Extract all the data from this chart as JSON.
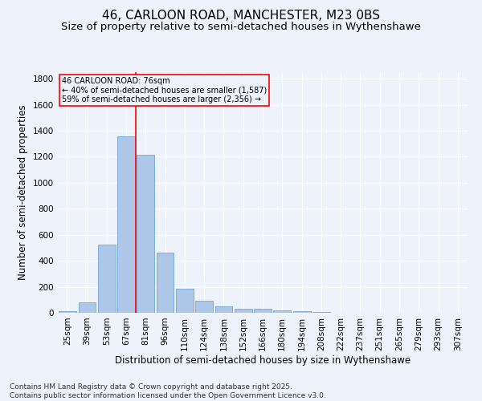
{
  "title": "46, CARLOON ROAD, MANCHESTER, M23 0BS",
  "subtitle": "Size of property relative to semi-detached houses in Wythenshawe",
  "xlabel": "Distribution of semi-detached houses by size in Wythenshawe",
  "ylabel": "Number of semi-detached properties",
  "footer": "Contains HM Land Registry data © Crown copyright and database right 2025.\nContains public sector information licensed under the Open Government Licence v3.0.",
  "categories": [
    "25sqm",
    "39sqm",
    "53sqm",
    "67sqm",
    "81sqm",
    "96sqm",
    "110sqm",
    "124sqm",
    "138sqm",
    "152sqm",
    "166sqm",
    "180sqm",
    "194sqm",
    "208sqm",
    "222sqm",
    "237sqm",
    "251sqm",
    "265sqm",
    "279sqm",
    "293sqm",
    "307sqm"
  ],
  "values": [
    15,
    80,
    525,
    1355,
    1215,
    465,
    185,
    90,
    48,
    32,
    30,
    18,
    10,
    5,
    2,
    2,
    1,
    0,
    0,
    0,
    0
  ],
  "bar_color": "#aec6e8",
  "bar_edge_color": "#5b9bd5",
  "property_line_color": "red",
  "annotation_title": "46 CARLOON ROAD: 76sqm",
  "annotation_line1": "← 40% of semi-detached houses are smaller (1,587)",
  "annotation_line2": "59% of semi-detached houses are larger (2,356) →",
  "annotation_box_color": "red",
  "ylim": [
    0,
    1850
  ],
  "yticks": [
    0,
    200,
    400,
    600,
    800,
    1000,
    1200,
    1400,
    1600,
    1800
  ],
  "bg_color": "#eef2fa",
  "grid_color": "white",
  "title_fontsize": 11,
  "subtitle_fontsize": 9.5,
  "label_fontsize": 8.5,
  "tick_fontsize": 7.5,
  "footer_fontsize": 6.5
}
